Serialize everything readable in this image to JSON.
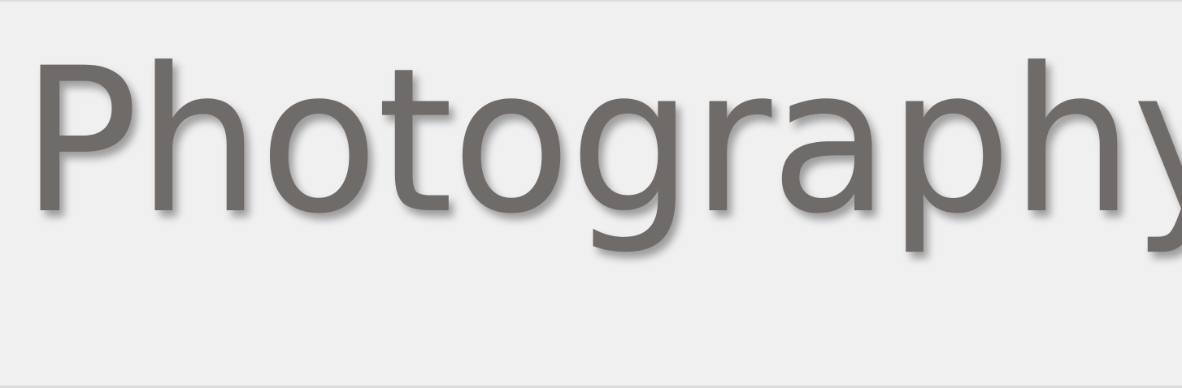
{
  "header": {
    "title": "Photography"
  },
  "colors": {
    "background": "#f0f0f0",
    "title_text": "#6f6b69",
    "border": "#dcdcdc"
  }
}
